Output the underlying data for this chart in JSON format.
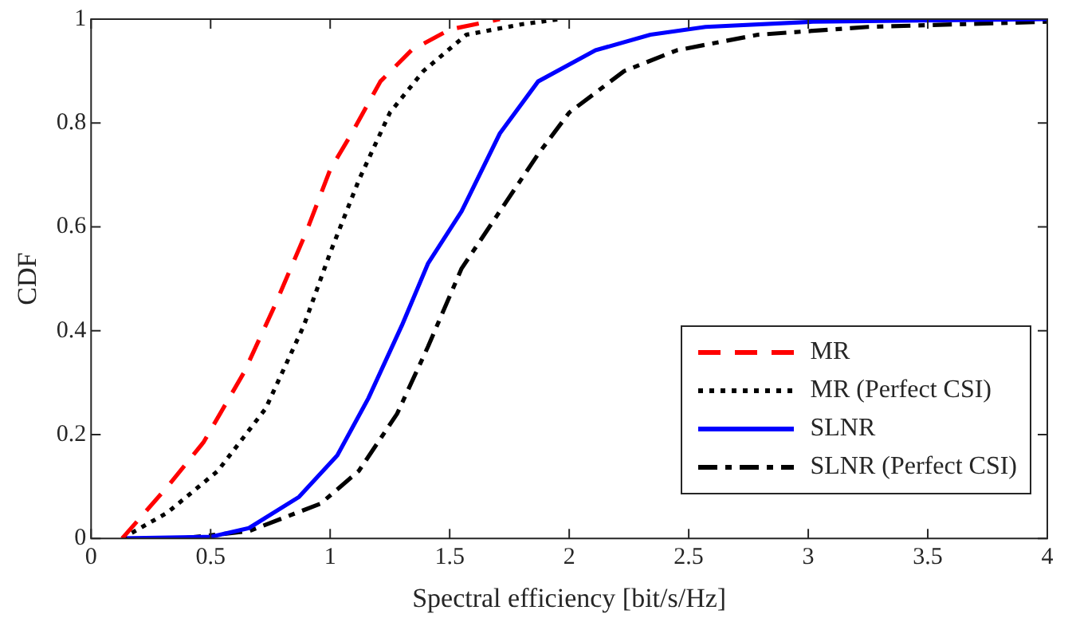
{
  "chart_data": {
    "type": "line",
    "xlabel": "Spectral efficiency [bit/s/Hz]",
    "ylabel": "CDF",
    "xlim": [
      0,
      4
    ],
    "ylim": [
      0,
      1
    ],
    "xticks": [
      0,
      0.5,
      1,
      1.5,
      2,
      2.5,
      3,
      3.5,
      4
    ],
    "yticks": [
      0,
      0.2,
      0.4,
      0.6,
      0.8,
      1
    ],
    "grid": false,
    "legend": "bottom right",
    "marker": "none",
    "series": [
      {
        "name": "MR",
        "color": "#ff0000",
        "line_style": "dashed",
        "x": [
          0.13,
          0.32,
          0.47,
          0.64,
          0.77,
          0.9,
          1.0,
          1.09,
          1.21,
          1.34,
          1.5,
          1.71
        ],
        "values": [
          0,
          0.1,
          0.185,
          0.32,
          0.45,
          0.59,
          0.71,
          0.78,
          0.88,
          0.94,
          0.98,
          1.0
        ]
      },
      {
        "name": "MR (Perfect CSI)",
        "color": "#000000",
        "line_style": "dotted",
        "x": [
          0.13,
          0.32,
          0.53,
          0.73,
          0.89,
          1.0,
          1.12,
          1.25,
          1.39,
          1.57,
          1.8,
          1.96
        ],
        "values": [
          0,
          0.05,
          0.13,
          0.25,
          0.41,
          0.55,
          0.69,
          0.82,
          0.9,
          0.97,
          0.99,
          1.0
        ]
      },
      {
        "name": "SLNR",
        "color": "#0000ff",
        "line_style": "solid",
        "x": [
          0.13,
          0.5,
          0.66,
          0.87,
          1.03,
          1.16,
          1.3,
          1.41,
          1.55,
          1.71,
          1.87,
          2.11,
          2.34,
          2.57,
          3.02,
          4.0
        ],
        "values": [
          0,
          0.003,
          0.02,
          0.08,
          0.16,
          0.27,
          0.41,
          0.53,
          0.63,
          0.78,
          0.88,
          0.94,
          0.97,
          0.985,
          0.995,
          1.0
        ]
      },
      {
        "name": "SLNR (Perfect CSI)",
        "color": "#000000",
        "line_style": "dashdot",
        "x": [
          0.38,
          0.66,
          0.96,
          1.12,
          1.28,
          1.41,
          1.55,
          1.71,
          1.87,
          2.0,
          2.23,
          2.45,
          2.79,
          3.25,
          4.0
        ],
        "values": [
          0,
          0.014,
          0.067,
          0.13,
          0.24,
          0.37,
          0.52,
          0.63,
          0.74,
          0.82,
          0.9,
          0.94,
          0.97,
          0.985,
          0.995
        ]
      }
    ]
  }
}
